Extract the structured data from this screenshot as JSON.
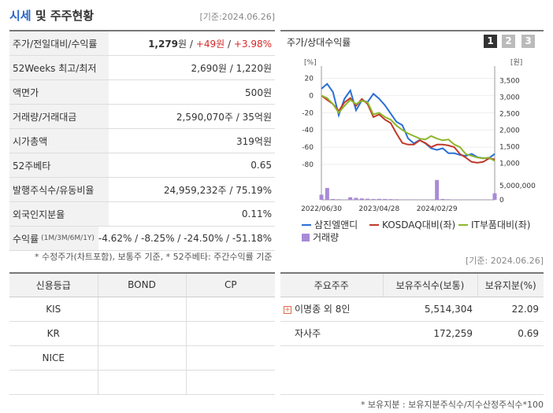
{
  "header": {
    "title_part1": "시세",
    "title_part2": "및 주주현황",
    "date": "[기준:2024.06.26]"
  },
  "left_table": {
    "rows": [
      {
        "label": "주가/전일대비/수익률",
        "price": "1,279",
        "unit": "원",
        "sep1": " / ",
        "change": "+49원",
        "sep2": " / ",
        "rate": "+3.98%"
      },
      {
        "label": "52Weeks 최고/최저",
        "value": "2,690원 / 1,220원"
      },
      {
        "label": "액면가",
        "value": "500원"
      },
      {
        "label": "거래량/거래대금",
        "value": "2,590,070주 / 35억원"
      },
      {
        "label": "시가총액",
        "value": "319억원"
      },
      {
        "label": "52주베타",
        "value": "0.65"
      },
      {
        "label": "발행주식수/유동비율",
        "value": "24,959,232주 / 75.19%"
      },
      {
        "label": "외국인지분율",
        "value": "0.11%"
      },
      {
        "label": "수익률",
        "label_small": "(1M/3M/6M/1Y)",
        "value": "-4.62% / -8.25% / -24.50% / -51.18%"
      }
    ],
    "footnote": "* 수정주가(차트포함), 보통주 기준, * 52주베타: 주간수익률 기준"
  },
  "chart": {
    "title": "주가/상대수익률",
    "page_buttons": [
      "1",
      "2",
      "3"
    ],
    "date": "[기준: 2024.06.26]",
    "legend": [
      {
        "name": "삼진엘앤디",
        "color": "#2a6fd6"
      },
      {
        "name": "KOSDAQ대비(좌)",
        "color": "#c0392b"
      },
      {
        "name": "IT부품대비(좌)",
        "color": "#8db62b"
      },
      {
        "name": "거래량",
        "color": "#a98ad6"
      }
    ]
  },
  "chart_data": {
    "type": "line",
    "left_axis": {
      "unit_label": "[%]",
      "ticks": [
        20,
        0,
        -20,
        -40,
        -60,
        -80
      ],
      "range": [
        -90,
        25
      ]
    },
    "right_axis": {
      "unit_label": "[원]",
      "ticks": [
        "3,500",
        "3,000",
        "2,500",
        "2,000",
        "1,500",
        "1,000"
      ],
      "range": [
        700,
        3700
      ]
    },
    "volume_axis": {
      "ticks": [
        "5,000,000",
        "0"
      ],
      "max": 5000000
    },
    "x_ticks": [
      "2022/06/30",
      "2023/04/28",
      "2024/02/29"
    ],
    "x_tick_index": [
      0,
      10,
      20
    ],
    "series": [
      {
        "name": "삼진엘앤디",
        "axis": "right",
        "color": "#2a6fd6",
        "values": [
          3250,
          3400,
          3150,
          2450,
          2950,
          3200,
          2600,
          2900,
          2850,
          3100,
          2950,
          2750,
          2500,
          2250,
          2150,
          1750,
          1600,
          1700,
          1600,
          1450,
          1400,
          1450,
          1300,
          1300,
          1250,
          1220,
          1280,
          1180,
          1150,
          1150,
          1279
        ]
      },
      {
        "name": "KOSDAQ대비(좌)",
        "axis": "left",
        "color": "#c0392b",
        "values": [
          0,
          -5,
          -10,
          -18,
          -8,
          -3,
          -12,
          -4,
          -10,
          -25,
          -22,
          -28,
          -32,
          -44,
          -55,
          -57,
          -57,
          -52,
          -55,
          -60,
          -57,
          -57,
          -58,
          -60,
          -68,
          -72,
          -77,
          -78,
          -77,
          -73,
          -74
        ]
      },
      {
        "name": "IT부품대비(좌)",
        "axis": "left",
        "color": "#8db62b",
        "values": [
          0,
          -3,
          -10,
          -20,
          -12,
          -5,
          -10,
          -6,
          -8,
          -22,
          -20,
          -25,
          -28,
          -35,
          -40,
          -44,
          -47,
          -50,
          -51,
          -47,
          -50,
          -52,
          -51,
          -57,
          -60,
          -68,
          -70,
          -72,
          -73,
          -72,
          -76
        ]
      }
    ],
    "volume": [
      1800000,
      4200000,
      300000,
      200000,
      100000,
      900000,
      700000,
      500000,
      400000,
      300000,
      350000,
      300000,
      250000,
      200000,
      150000,
      100000,
      150000,
      100000,
      100000,
      80000,
      7000000,
      300000,
      200000,
      100000,
      120000,
      100000,
      80000,
      60000,
      80000,
      90000,
      2300000
    ]
  },
  "credit_table": {
    "headers": [
      "신용등급",
      "BOND",
      "CP"
    ],
    "rows": [
      {
        "agency": "KIS",
        "bond": "",
        "cp": ""
      },
      {
        "agency": "KR",
        "bond": "",
        "cp": ""
      },
      {
        "agency": "NICE",
        "bond": "",
        "cp": ""
      },
      {
        "agency": "",
        "bond": "",
        "cp": ""
      }
    ]
  },
  "holder_table": {
    "headers": [
      "주요주주",
      "보유주식수(보통)",
      "보유지분(%)"
    ],
    "rows": [
      {
        "name": "이명종 외 8인",
        "shares": "5,514,304",
        "pct": "22.09",
        "expandable": true
      },
      {
        "name": "자사주",
        "shares": "172,259",
        "pct": "0.69",
        "expandable": false
      }
    ],
    "footnote": "* 보유지분 : 보유지분주식수/지수산정주식수*100"
  }
}
